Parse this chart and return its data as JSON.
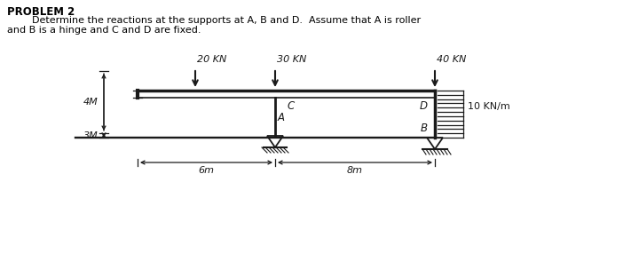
{
  "title_bold": "PROBLEM 2",
  "title_indent": "        Determine the reactions at the supports at A, B and D.  Assume that A is roller",
  "title_line2": "and B is a hinge and C and D are fixed.",
  "bg_color": "#ffffff",
  "text_color": "#000000",
  "load_20_label": "20 KN",
  "load_30_label": "30 KN",
  "load_40_label": "40 KN",
  "dist_load_label": "10 KN/m",
  "dim_4m": "4M",
  "dim_3m": "3M",
  "dim_6m": "6m",
  "dim_8m": "8m",
  "label_A": "A",
  "label_B": "B",
  "label_C": "C",
  "label_D": "D",
  "struct_color": "#1a1a1a",
  "line_width": 2.0,
  "thin_lw": 0.9
}
